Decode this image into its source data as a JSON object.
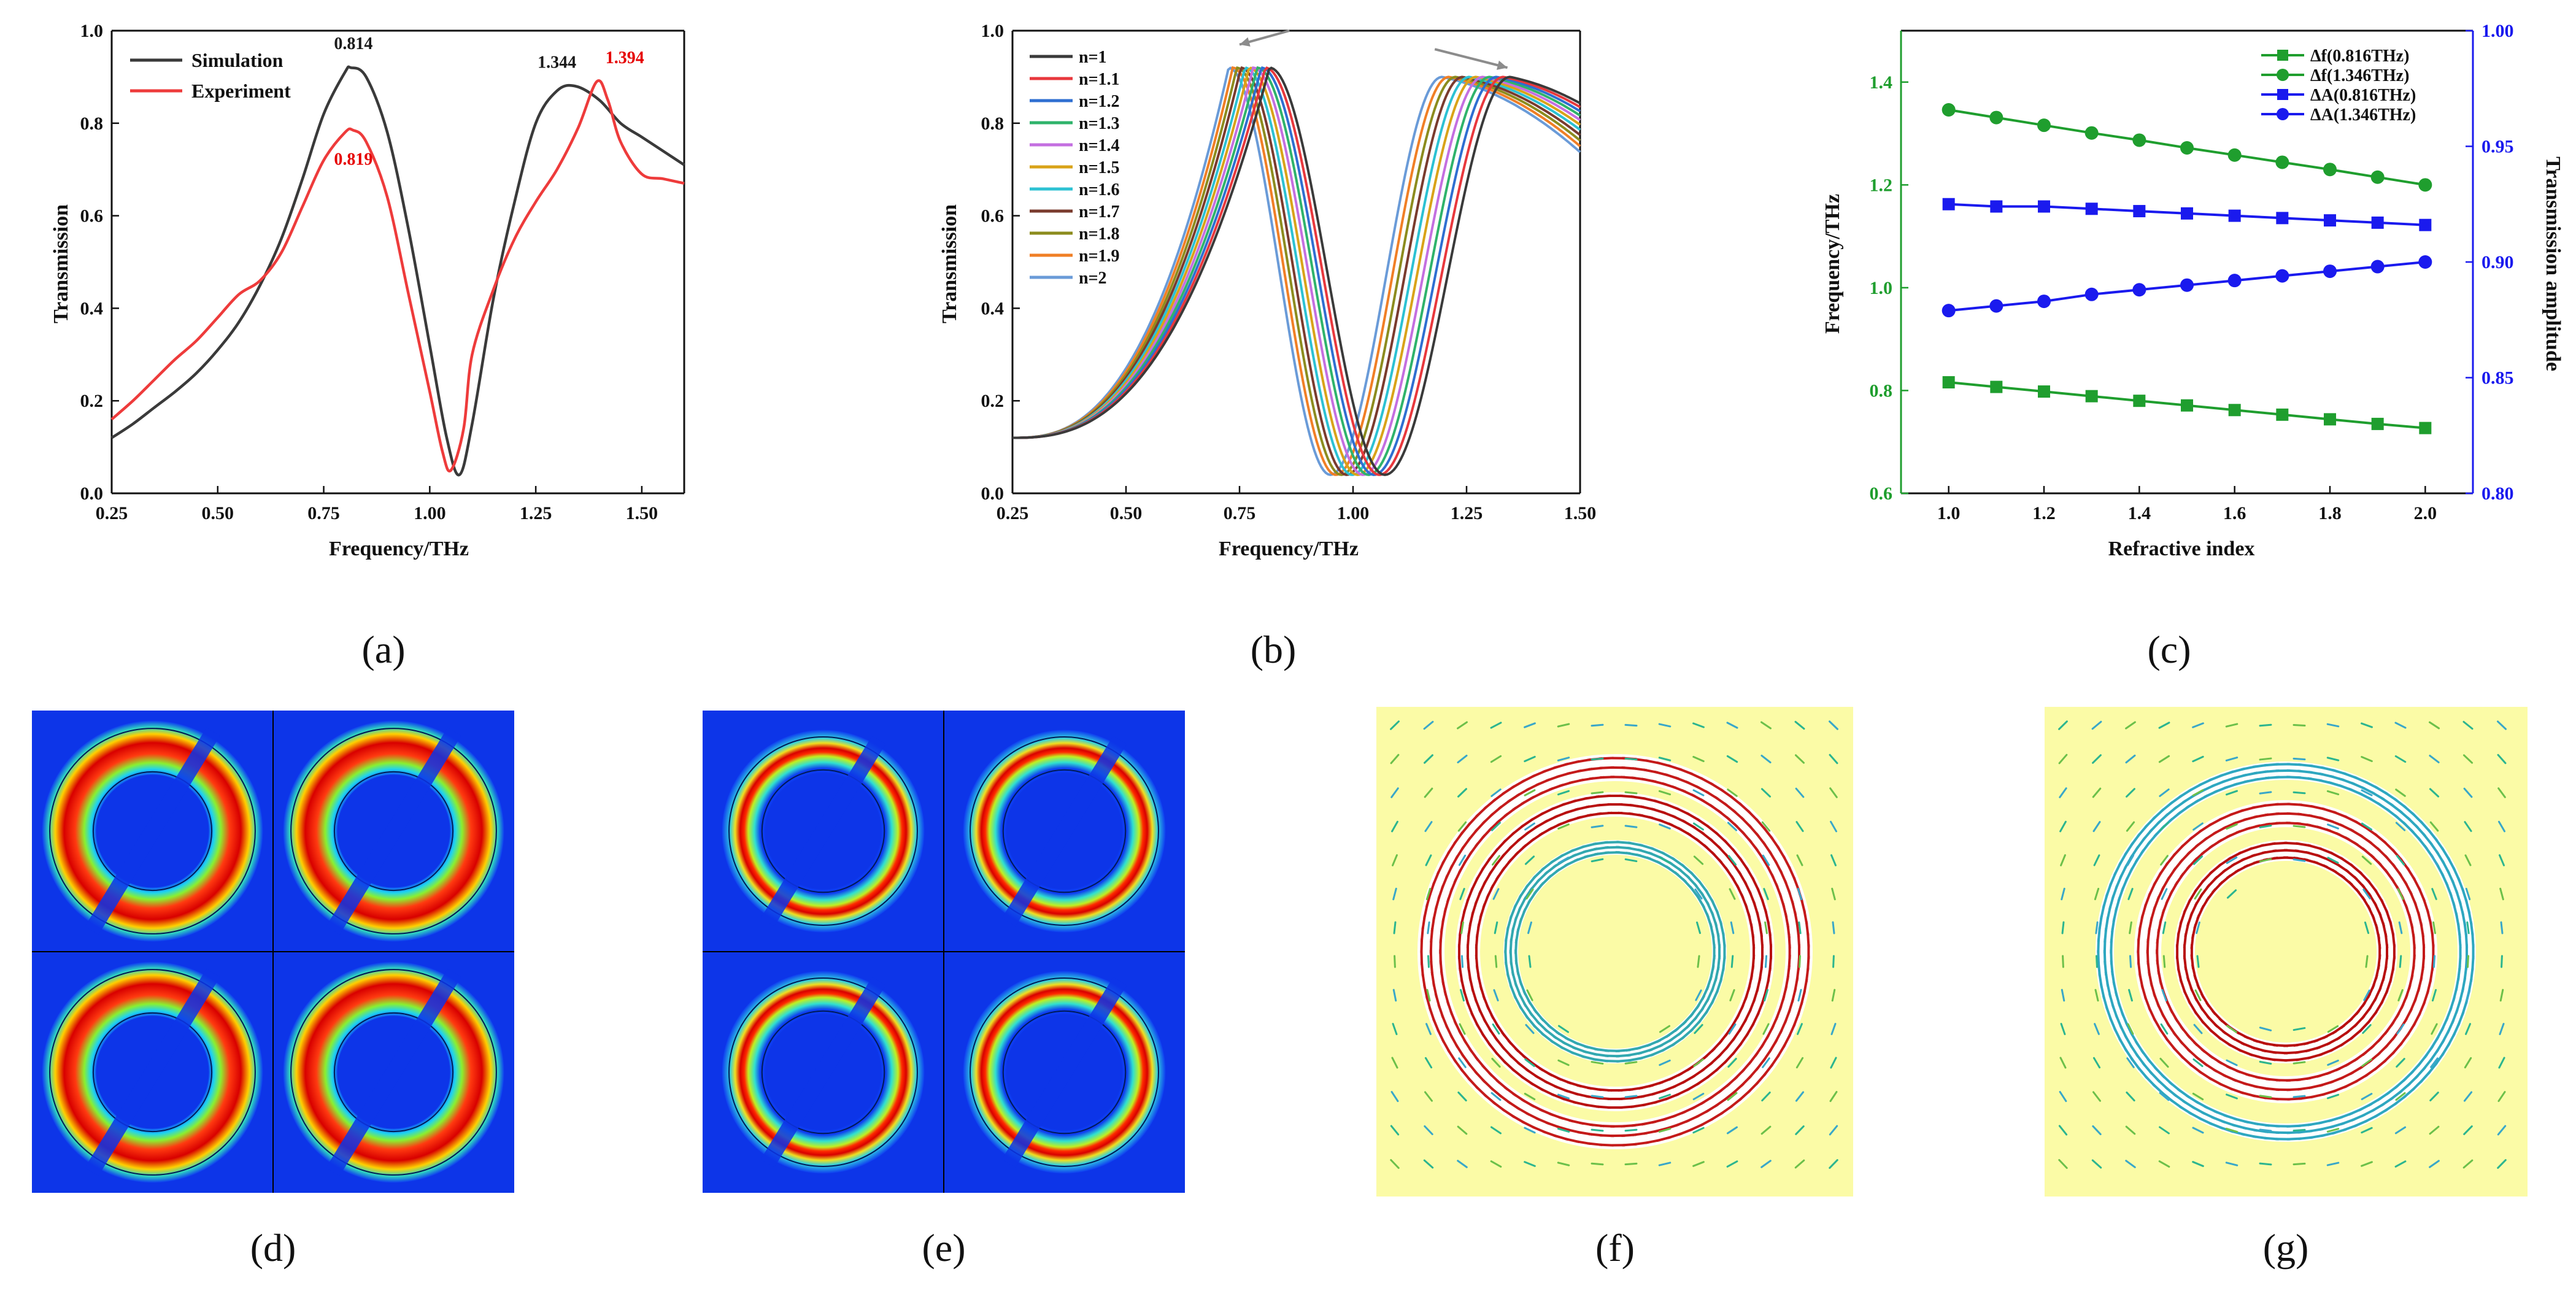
{
  "chart_data": [
    {
      "id": "a",
      "type": "line",
      "panel_label": "(a)",
      "xlabel": "Frequency/THz",
      "ylabel": "Transmission",
      "xlim": [
        0.25,
        1.6
      ],
      "ylim": [
        0.0,
        1.0
      ],
      "xticks": [
        0.25,
        0.5,
        0.75,
        1.0,
        1.25,
        1.5
      ],
      "xtick_labels": [
        "0.25",
        "0.50",
        "0.75",
        "1.00",
        "1.25",
        "1.50"
      ],
      "yticks": [
        0.0,
        0.2,
        0.4,
        0.6,
        0.8,
        1.0
      ],
      "ytick_labels": [
        "0.0",
        "0.2",
        "0.4",
        "0.6",
        "0.8",
        "1.0"
      ],
      "legend_position": "top-left",
      "series": [
        {
          "name": "Simulation",
          "color": "#3a3a3a",
          "x": [
            0.25,
            0.3,
            0.35,
            0.4,
            0.45,
            0.5,
            0.55,
            0.6,
            0.65,
            0.7,
            0.75,
            0.8,
            0.814,
            0.85,
            0.9,
            0.95,
            1.0,
            1.04,
            1.07,
            1.1,
            1.15,
            1.2,
            1.25,
            1.3,
            1.344,
            1.4,
            1.45,
            1.5,
            1.55,
            1.6
          ],
          "y": [
            0.12,
            0.15,
            0.185,
            0.22,
            0.26,
            0.31,
            0.37,
            0.45,
            0.55,
            0.68,
            0.82,
            0.91,
            0.92,
            0.9,
            0.78,
            0.57,
            0.32,
            0.12,
            0.04,
            0.15,
            0.42,
            0.63,
            0.8,
            0.87,
            0.88,
            0.85,
            0.8,
            0.77,
            0.74,
            0.71
          ]
        },
        {
          "name": "Experiment",
          "color": "#ee3b3b",
          "x": [
            0.25,
            0.3,
            0.35,
            0.4,
            0.45,
            0.5,
            0.55,
            0.6,
            0.65,
            0.7,
            0.75,
            0.8,
            0.819,
            0.85,
            0.9,
            0.95,
            1.0,
            1.03,
            1.05,
            1.08,
            1.1,
            1.15,
            1.2,
            1.25,
            1.3,
            1.35,
            1.394,
            1.42,
            1.45,
            1.5,
            1.55,
            1.6
          ],
          "y": [
            0.16,
            0.2,
            0.245,
            0.29,
            0.33,
            0.38,
            0.43,
            0.46,
            0.52,
            0.62,
            0.72,
            0.78,
            0.785,
            0.76,
            0.64,
            0.43,
            0.22,
            0.09,
            0.05,
            0.14,
            0.3,
            0.44,
            0.55,
            0.63,
            0.7,
            0.79,
            0.89,
            0.85,
            0.76,
            0.69,
            0.68,
            0.67
          ]
        }
      ],
      "annotations": [
        {
          "text": "0.814",
          "x": 0.82,
          "y": 0.96,
          "color": "#1a1a1a"
        },
        {
          "text": "0.819",
          "x": 0.82,
          "y": 0.71,
          "color": "#e60000"
        },
        {
          "text": "1.344",
          "x": 1.3,
          "y": 0.92,
          "color": "#1a1a1a"
        },
        {
          "text": "1.394",
          "x": 1.46,
          "y": 0.93,
          "color": "#e60000"
        }
      ]
    },
    {
      "id": "b",
      "type": "line",
      "panel_label": "(b)",
      "xlabel": "Frequency/THz",
      "ylabel": "Transmission",
      "xlim": [
        0.25,
        1.5
      ],
      "ylim": [
        0.0,
        1.0
      ],
      "xticks": [
        0.25,
        0.5,
        0.75,
        1.0,
        1.25,
        1.5
      ],
      "xtick_labels": [
        "0.25",
        "0.50",
        "0.75",
        "1.00",
        "1.25",
        "1.50"
      ],
      "yticks": [
        0.0,
        0.2,
        0.4,
        0.6,
        0.8,
        1.0
      ],
      "ytick_labels": [
        "0.0",
        "0.2",
        "0.4",
        "0.6",
        "0.8",
        "1.0"
      ],
      "legend_position": "top-left",
      "series": [
        {
          "name": "n=1",
          "color": "#3a3a3a",
          "peak1_x": 0.816,
          "dip_x": 1.07,
          "peak2_x": 1.346
        },
        {
          "name": "n=1.1",
          "color": "#e8383d",
          "peak1_x": 0.807,
          "dip_x": 1.058,
          "peak2_x": 1.331
        },
        {
          "name": "n=1.2",
          "color": "#2f6fd1",
          "peak1_x": 0.798,
          "dip_x": 1.046,
          "peak2_x": 1.316
        },
        {
          "name": "n=1.3",
          "color": "#2fb36b",
          "peak1_x": 0.789,
          "dip_x": 1.034,
          "peak2_x": 1.301
        },
        {
          "name": "n=1.4",
          "color": "#c46fe0",
          "peak1_x": 0.78,
          "dip_x": 1.022,
          "peak2_x": 1.286
        },
        {
          "name": "n=1.5",
          "color": "#d9a319",
          "peak1_x": 0.771,
          "dip_x": 1.01,
          "peak2_x": 1.271
        },
        {
          "name": "n=1.6",
          "color": "#2cc1d3",
          "peak1_x": 0.762,
          "dip_x": 0.998,
          "peak2_x": 1.256
        },
        {
          "name": "n=1.7",
          "color": "#7a3b2e",
          "peak1_x": 0.753,
          "dip_x": 0.986,
          "peak2_x": 1.241
        },
        {
          "name": "n=1.8",
          "color": "#8c8c1e",
          "peak1_x": 0.744,
          "dip_x": 0.974,
          "peak2_x": 1.226
        },
        {
          "name": "n=1.9",
          "color": "#f07f26",
          "peak1_x": 0.735,
          "dip_x": 0.962,
          "peak2_x": 1.211
        },
        {
          "name": "n=2",
          "color": "#6a9bd8",
          "peak1_x": 0.726,
          "dip_x": 0.95,
          "peak2_x": 1.196
        }
      ]
    },
    {
      "id": "c",
      "type": "line",
      "panel_label": "(c)",
      "xlabel": "Refractive index",
      "ylabel": "Frequency/THz",
      "ylabel_right": "Transmission amplitude",
      "xlim": [
        0.9,
        2.1
      ],
      "ylim": [
        0.6,
        1.5
      ],
      "ylim_right": [
        0.8,
        1.0
      ],
      "xticks": [
        1.0,
        1.2,
        1.4,
        1.6,
        1.8,
        2.0
      ],
      "xtick_labels": [
        "1.0",
        "1.2",
        "1.4",
        "1.6",
        "1.8",
        "2.0"
      ],
      "yticks": [
        0.6,
        0.8,
        1.0,
        1.2,
        1.4
      ],
      "ytick_labels": [
        "0.6",
        "0.8",
        "1.0",
        "1.2",
        "1.4"
      ],
      "yticks_right": [
        0.8,
        0.85,
        0.9,
        0.95,
        1.0
      ],
      "ytick_labels_right": [
        "0.80",
        "0.85",
        "0.90",
        "0.95",
        "1.00"
      ],
      "left_axis_color": "#1f9e2e",
      "right_axis_color": "#1a1aee",
      "legend_position": "top-right",
      "x": [
        1.0,
        1.1,
        1.2,
        1.3,
        1.4,
        1.5,
        1.6,
        1.7,
        1.8,
        1.9,
        2.0
      ],
      "series": [
        {
          "name": "Δf(0.816THz)",
          "axis": "left",
          "marker": "square",
          "color": "#1f9e2e",
          "values": [
            0.816,
            0.807,
            0.798,
            0.789,
            0.78,
            0.771,
            0.762,
            0.753,
            0.744,
            0.735,
            0.727
          ]
        },
        {
          "name": "Δf(1.346THz)",
          "axis": "left",
          "marker": "circle",
          "color": "#1f9e2e",
          "values": [
            1.346,
            1.331,
            1.316,
            1.301,
            1.287,
            1.272,
            1.258,
            1.244,
            1.23,
            1.215,
            1.2
          ]
        },
        {
          "name": "ΔA(0.816THz)",
          "axis": "right",
          "marker": "square",
          "color": "#1a1aee",
          "values": [
            0.925,
            0.924,
            0.924,
            0.923,
            0.922,
            0.921,
            0.92,
            0.919,
            0.918,
            0.917,
            0.916
          ]
        },
        {
          "name": "ΔA(1.346THz)",
          "axis": "right",
          "marker": "circle",
          "color": "#1a1aee",
          "values": [
            0.879,
            0.881,
            0.883,
            0.886,
            0.888,
            0.89,
            0.892,
            0.894,
            0.896,
            0.898,
            0.9
          ]
        }
      ]
    }
  ],
  "field_maps": [
    {
      "id": "d",
      "panel_label": "(d)",
      "kind": "electric-field-2x2"
    },
    {
      "id": "e",
      "panel_label": "(e)",
      "kind": "electric-field-2x2"
    },
    {
      "id": "f",
      "panel_label": "(f)",
      "kind": "surface-current-arrows"
    },
    {
      "id": "g",
      "panel_label": "(g)",
      "kind": "surface-current-arrows"
    }
  ]
}
